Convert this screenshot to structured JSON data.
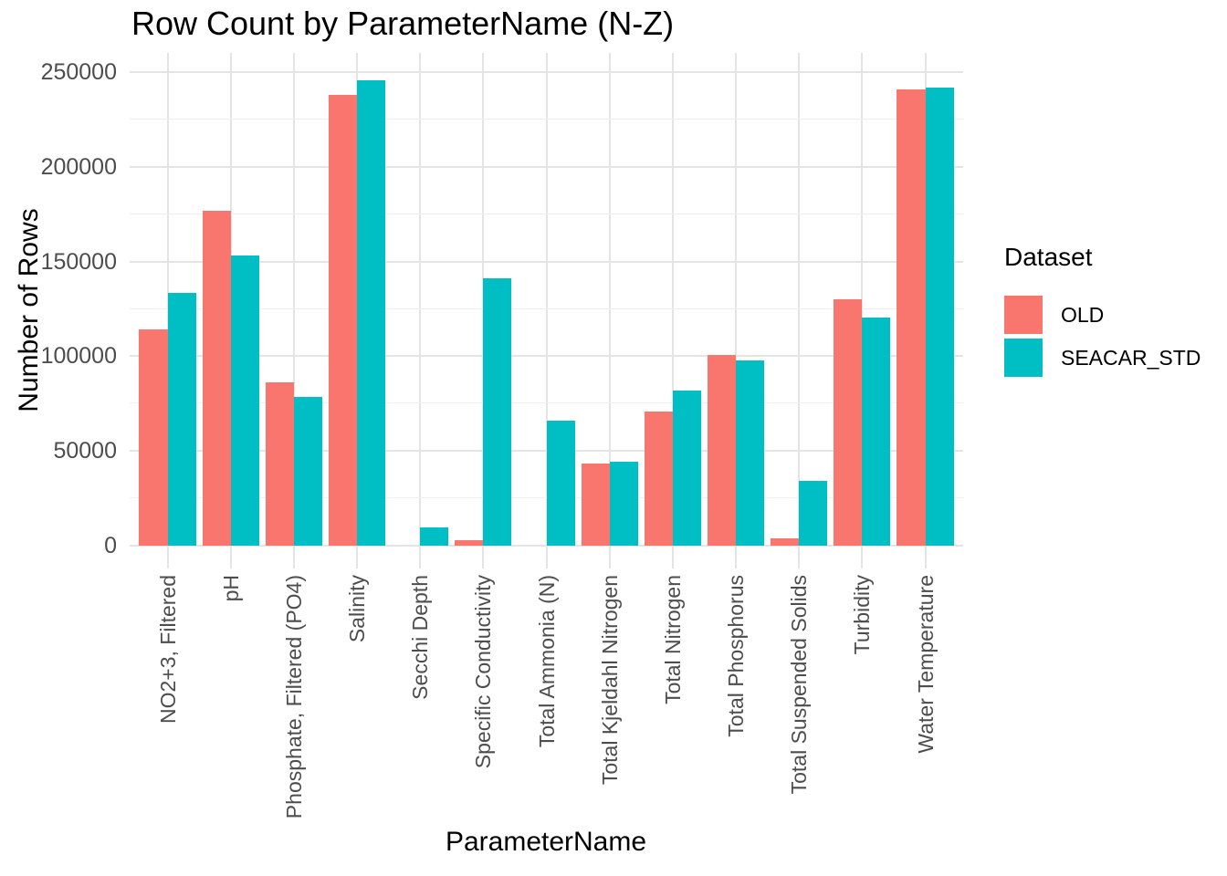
{
  "chart_data": {
    "type": "bar",
    "title": "Row Count by ParameterName (N-Z)",
    "xlabel": "ParameterName",
    "ylabel": "Number of Rows",
    "legend_title": "Dataset",
    "legend_position": "right",
    "grid": true,
    "ylim": [
      0,
      260000
    ],
    "yticks": [
      0,
      50000,
      100000,
      150000,
      200000,
      250000
    ],
    "ytick_labels": [
      "0",
      "50000",
      "100000",
      "150000",
      "200000",
      "250000"
    ],
    "minor_gridline_step": 25000,
    "categories": [
      "NO2+3, Filtered",
      "pH",
      "Phosphate, Filtered (PO4)",
      "Salinity",
      "Secchi Depth",
      "Specific Conductivity",
      "Total Ammonia (N)",
      "Total Kjeldahl Nitrogen",
      "Total Nitrogen",
      "Total Phosphorus",
      "Total Suspended Solids",
      "Turbidity",
      "Water Temperature"
    ],
    "series": [
      {
        "name": "OLD",
        "color": "#F8766D",
        "values": [
          114000,
          177000,
          86000,
          238000,
          null,
          3000,
          null,
          43500,
          71000,
          100500,
          4000,
          130000,
          241000
        ]
      },
      {
        "name": "SEACAR_STD",
        "color": "#00BFC4",
        "values": [
          133500,
          153000,
          78500,
          245500,
          9500,
          141000,
          66000,
          44500,
          82000,
          98000,
          34000,
          120500,
          242000
        ]
      }
    ]
  },
  "colors": {
    "background": "#ffffff",
    "gridline_major": "#e4e4e4",
    "gridline_minor": "#efefef",
    "axis_text": "#4d4d4d",
    "title_text": "#000000"
  }
}
